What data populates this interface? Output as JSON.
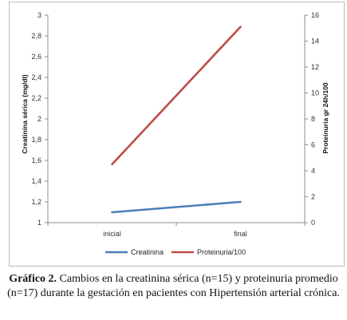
{
  "colors": {
    "creatinina": "#4a7ebb",
    "proteinuria": "#be4b48",
    "axis": "#8c8c8c"
  },
  "caption": {
    "label": "Gráfico 2.",
    "text": "Cambios en la creatinina sérica (n=15) y proteinuria promedio (n=17) durante la gestación en pacientes con Hipertensión arterial crónica."
  },
  "chart_data": {
    "type": "line",
    "title": "",
    "categories": [
      "inicial",
      "final"
    ],
    "series": [
      {
        "name": "Creatinina",
        "axis": "left",
        "color": "#4a7ebb",
        "values": [
          1.1,
          1.2
        ]
      },
      {
        "name": "Proteinuria/100",
        "axis": "right",
        "color": "#be4b48",
        "values": [
          4.5,
          15.1
        ]
      }
    ],
    "ylabel_left": "Creatinina sérica  (mg/dl)",
    "ylabel_right": "Proteinuria gr 24h/100",
    "ylim_left": [
      1,
      3
    ],
    "ylim_right": [
      0,
      16
    ],
    "yticks_left": [
      "1",
      "1,2",
      "1,4",
      "1,6",
      "1,8",
      "2",
      "2,2",
      "2,4",
      "2,6",
      "2,8",
      "3"
    ],
    "yticks_right": [
      "0",
      "2",
      "4",
      "6",
      "8",
      "10",
      "12",
      "14",
      "16"
    ],
    "grid": false,
    "legend_position": "bottom"
  }
}
